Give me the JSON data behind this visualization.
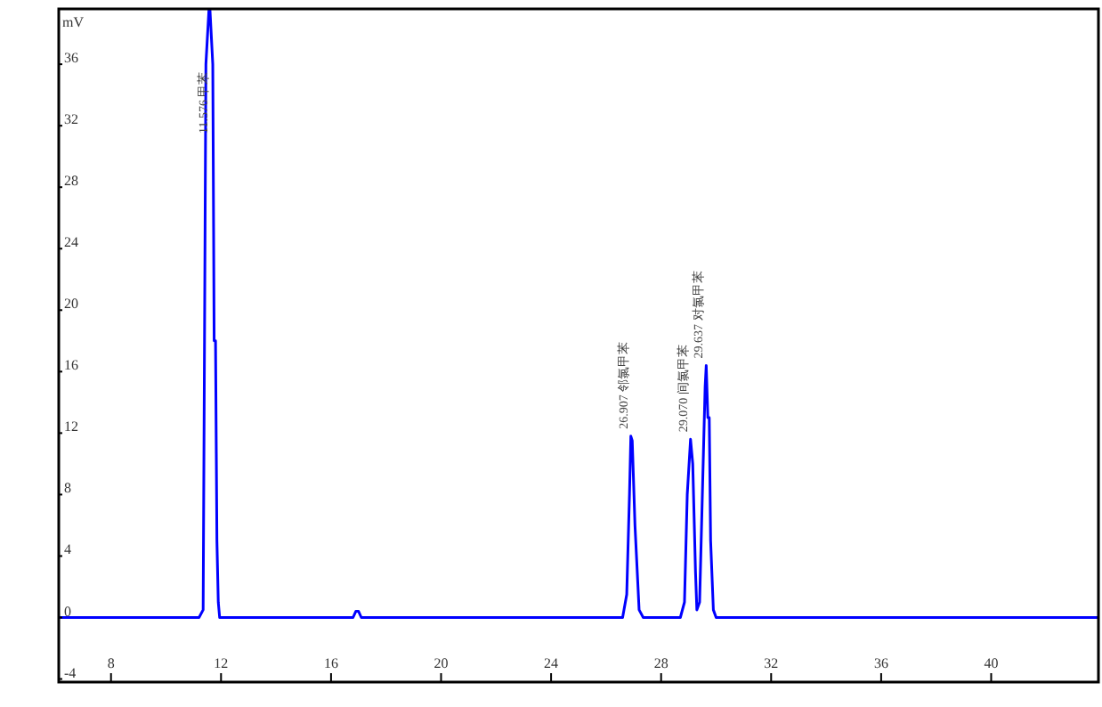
{
  "chart_data": {
    "type": "line",
    "ylabel": "mV",
    "x": [
      6.1,
      11.2,
      11.35,
      11.45,
      11.58,
      11.7,
      11.75,
      11.8,
      11.85,
      11.9,
      11.95,
      12.1,
      16.8,
      16.9,
      17.0,
      17.1,
      17.2,
      26.6,
      26.75,
      26.85,
      26.9,
      26.95,
      27.05,
      27.2,
      27.35,
      28.7,
      28.85,
      28.95,
      29.07,
      29.15,
      29.25,
      29.3,
      29.4,
      29.5,
      29.6,
      29.64,
      29.7,
      29.75,
      29.8,
      29.9,
      30.0,
      43.9
    ],
    "series": [
      {
        "color": "#0000ff",
        "values": [
          0,
          0,
          0.5,
          36,
          null,
          36,
          18,
          18,
          5,
          1,
          0,
          0,
          0,
          0.4,
          0.4,
          0,
          0,
          0,
          1.5,
          8,
          11.8,
          11.5,
          6,
          0.5,
          0,
          0,
          1,
          8,
          11.6,
          10,
          3,
          0.5,
          1,
          8,
          15,
          16.4,
          13,
          13,
          5,
          0.5,
          0,
          0
        ]
      }
    ],
    "xlim": [
      6.1,
      43.9
    ],
    "ylim": [
      -4.2,
      39.6
    ],
    "xticks": [
      8,
      12,
      16,
      20,
      24,
      28,
      32,
      36,
      40
    ],
    "yticks": [
      -4,
      0,
      4,
      8,
      12,
      16,
      20,
      24,
      28,
      32,
      36
    ],
    "grid": false,
    "marker": "none",
    "line_style": "solid",
    "annotations": [
      "11.576 甲苯",
      {
        "text": "26.907 邻氯甲苯",
        "x": 26.9,
        "y": 11.8
      },
      {
        "text": "29.070 间氯甲苯",
        "x": 29.07,
        "y": 11.6
      },
      {
        "text": "29.637 对氯甲苯",
        "x": 29.64,
        "y": 16.4
      }
    ]
  }
}
